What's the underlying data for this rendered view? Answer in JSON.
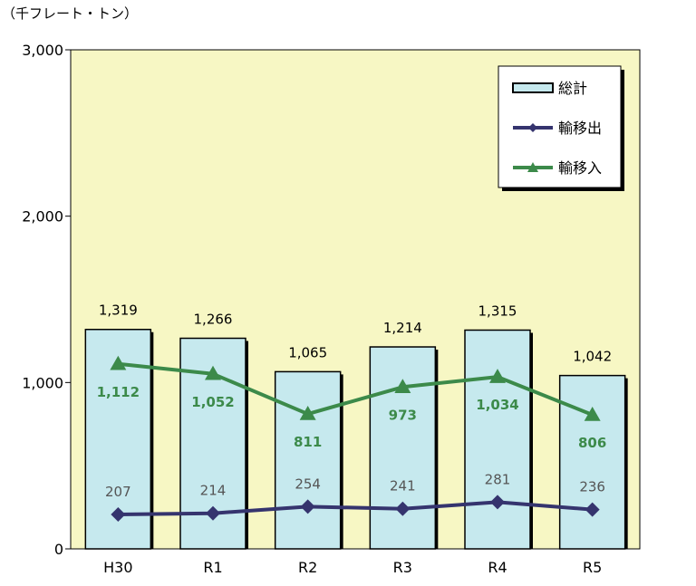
{
  "chart_data": {
    "type": "bar",
    "unit_label": "（千フレート・トン）",
    "categories": [
      "H30",
      "R1",
      "R2",
      "R3",
      "R4",
      "R5"
    ],
    "ylim": [
      0,
      3000
    ],
    "yticks": [
      0,
      1000,
      2000,
      3000
    ],
    "ytick_labels": [
      "0",
      "1,000",
      "2,000",
      "3,000"
    ],
    "legend_position": "top-right",
    "grid": false,
    "series": [
      {
        "name": "総計",
        "type": "bar",
        "values": [
          1319,
          1266,
          1065,
          1214,
          1315,
          1042
        ],
        "labels": [
          "1,319",
          "1,266",
          "1,065",
          "1,214",
          "1,315",
          "1,042"
        ],
        "color": "#c6e9ee"
      },
      {
        "name": "輸移出",
        "type": "line",
        "marker": "diamond",
        "values": [
          207,
          214,
          254,
          241,
          281,
          236
        ],
        "labels": [
          "207",
          "214",
          "254",
          "241",
          "281",
          "236"
        ],
        "color": "#35346e"
      },
      {
        "name": "輸移入",
        "type": "line",
        "marker": "triangle",
        "values": [
          1112,
          1052,
          811,
          973,
          1034,
          806
        ],
        "labels": [
          "1,112",
          "1,052",
          "811",
          "973",
          "1,034",
          "806"
        ],
        "color": "#3c8a4a"
      }
    ],
    "colors": {
      "plot_background": "#f7f7c4",
      "bar_border": "#000000"
    }
  }
}
